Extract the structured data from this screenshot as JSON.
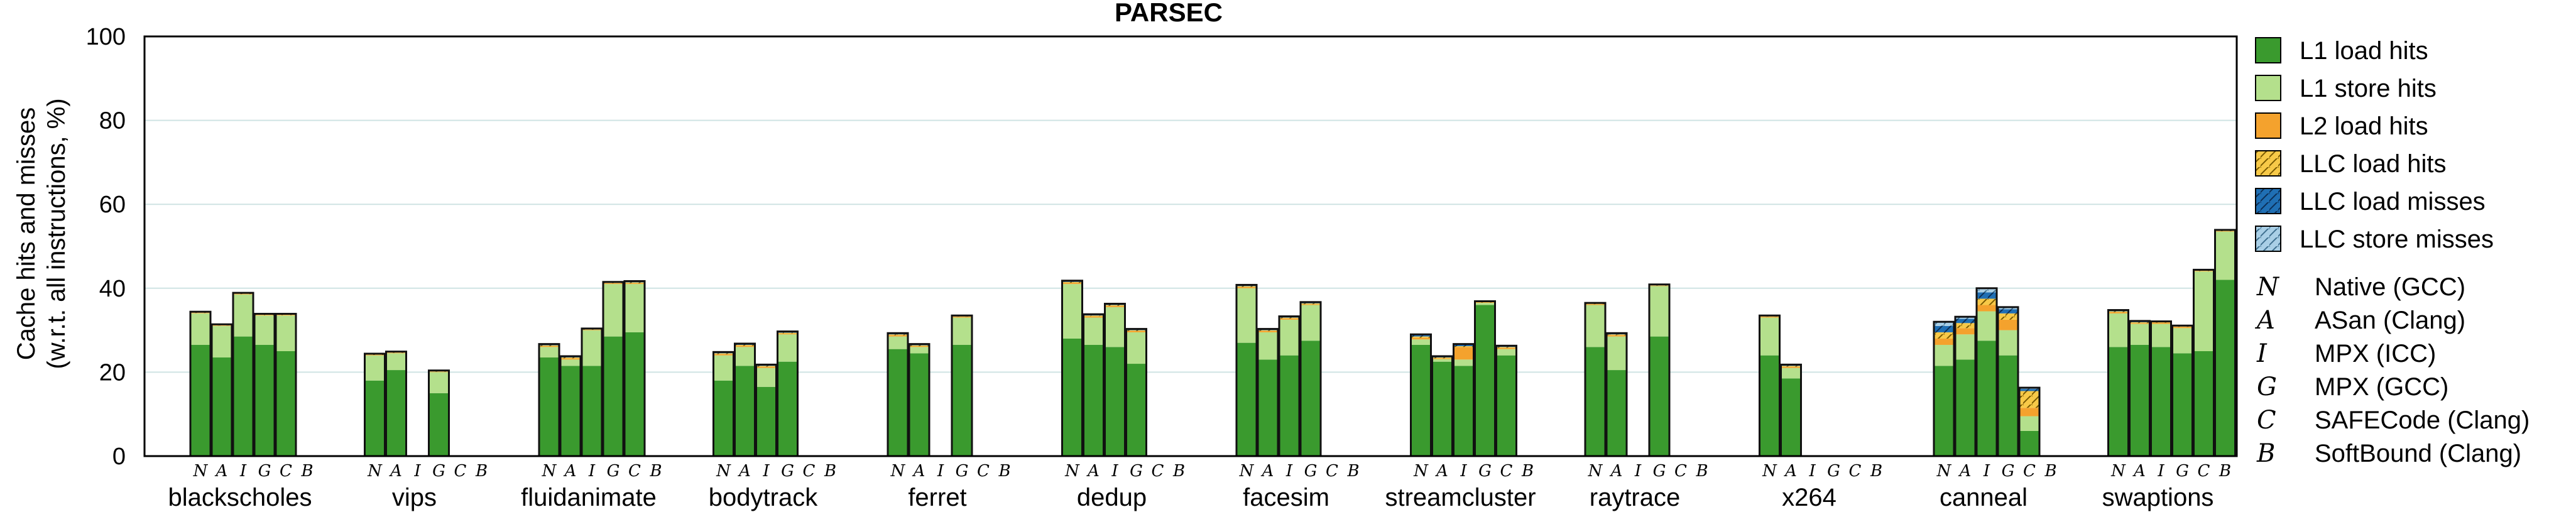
{
  "chart_data": {
    "type": "bar",
    "stacked": true,
    "title": "PARSEC",
    "ylabel_line1": "Cache hits and misses",
    "ylabel_line2": "(w.r.t. all instructions, %)",
    "ylim": [
      0,
      100
    ],
    "yticks": [
      "0",
      "20",
      "40",
      "60",
      "80",
      "100"
    ],
    "grid": true,
    "legend_position": "right",
    "configs": [
      "N",
      "A",
      "I",
      "G",
      "C",
      "B"
    ],
    "config_legend": [
      {
        "key": "N",
        "label": "Native (GCC)"
      },
      {
        "key": "A",
        "label": "ASan (Clang)"
      },
      {
        "key": "I",
        "label": "MPX (ICC)"
      },
      {
        "key": "G",
        "label": "MPX (GCC)"
      },
      {
        "key": "C",
        "label": "SAFECode (Clang)"
      },
      {
        "key": "B",
        "label": "SoftBound (Clang)"
      }
    ],
    "series": [
      {
        "name": "L1 load hits",
        "color": "#3a9a2e",
        "pattern": "none"
      },
      {
        "name": "L1 store hits",
        "color": "#b4e08c",
        "pattern": "none"
      },
      {
        "name": "L2 load hits",
        "color": "#f4a22d",
        "pattern": "none"
      },
      {
        "name": "LLC load hits",
        "color": "#f7c948",
        "pattern": "hatch"
      },
      {
        "name": "LLC load misses",
        "color": "#1f6fb4",
        "pattern": "hatch"
      },
      {
        "name": "LLC store misses",
        "color": "#a9cfe6",
        "pattern": "hatch"
      }
    ],
    "categories": [
      "blackscholes",
      "vips",
      "fluidanimate",
      "bodytrack",
      "ferret",
      "dedup",
      "facesim",
      "streamcluster",
      "raytrace",
      "x264",
      "canneal",
      "swaptions"
    ],
    "data": [
      [
        [
          26.5,
          7.5,
          0.1,
          0.1,
          0.1,
          0.1
        ],
        [
          23.5,
          7.5,
          0.1,
          0.1,
          0.1,
          0.1
        ],
        [
          28.5,
          10,
          0.1,
          0.1,
          0.1,
          0.1
        ],
        [
          26.5,
          7,
          0.1,
          0.1,
          0.1,
          0.1
        ],
        [
          25,
          8.5,
          0.1,
          0.1,
          0.1,
          0.1
        ],
        null
      ],
      [
        [
          18,
          6,
          0.1,
          0.1,
          0.1,
          0.1
        ],
        [
          20.5,
          4,
          0.1,
          0.1,
          0.1,
          0.1
        ],
        null,
        [
          15,
          5,
          0.1,
          0.1,
          0.1,
          0.1
        ],
        null,
        null
      ],
      [
        [
          23.5,
          2.5,
          0.2,
          0.2,
          0.2,
          0.1
        ],
        [
          21.5,
          1.5,
          0.3,
          0.2,
          0.2,
          0.1
        ],
        [
          21.5,
          8.5,
          0.1,
          0.1,
          0.1,
          0.1
        ],
        [
          28.5,
          12.5,
          0.2,
          0.1,
          0.1,
          0.1
        ],
        [
          29.5,
          11.5,
          0.2,
          0.2,
          0.2,
          0.1
        ],
        null
      ],
      [
        [
          18,
          6,
          0.3,
          0.2,
          0.2,
          0.1
        ],
        [
          21.5,
          4.5,
          0.3,
          0.2,
          0.2,
          0.1
        ],
        [
          16.5,
          4.5,
          0.3,
          0.2,
          0.2,
          0.1
        ],
        [
          22.5,
          6.5,
          0.2,
          0.2,
          0.2,
          0.1
        ],
        null,
        null
      ],
      [
        [
          25.5,
          3,
          0.3,
          0.2,
          0.2,
          0.1
        ],
        [
          24.5,
          1.5,
          0.2,
          0.2,
          0.2,
          0.1
        ],
        null,
        [
          26.5,
          6.5,
          0.2,
          0.1,
          0.1,
          0.1
        ],
        null,
        null
      ],
      [
        [
          28,
          13,
          0.3,
          0.2,
          0.2,
          0.1
        ],
        [
          26.5,
          6.5,
          0.3,
          0.2,
          0.2,
          0.1
        ],
        [
          26,
          9.5,
          0.3,
          0.2,
          0.2,
          0.1
        ],
        [
          22,
          7.5,
          0.3,
          0.2,
          0.2,
          0.1
        ],
        null,
        null
      ],
      [
        [
          27,
          13,
          0.3,
          0.2,
          0.2,
          0.1
        ],
        [
          23,
          6.5,
          0.3,
          0.2,
          0.2,
          0.1
        ],
        [
          24,
          8.5,
          0.3,
          0.2,
          0.2,
          0.1
        ],
        [
          27.5,
          8.5,
          0.2,
          0.2,
          0.2,
          0.1
        ],
        null,
        null
      ],
      [
        [
          26.5,
          1.3,
          0.4,
          0.3,
          0.3,
          0.2
        ],
        [
          22.5,
          0.6,
          0.2,
          0.2,
          0.2,
          0.1
        ],
        [
          21.5,
          1.5,
          3,
          0.2,
          0.3,
          0.2
        ],
        [
          36,
          0.5,
          0.1,
          0.1,
          0.1,
          0.1
        ],
        [
          24,
          1.5,
          0.3,
          0.2,
          0.2,
          0.1
        ],
        null
      ],
      [
        [
          26,
          10,
          0.2,
          0.1,
          0.1,
          0.1
        ],
        [
          20.5,
          8,
          0.3,
          0.2,
          0.2,
          0.1
        ],
        null,
        [
          28.5,
          12,
          0.1,
          0.1,
          0.1,
          0.1
        ],
        null,
        null
      ],
      [
        [
          24,
          9,
          0.2,
          0.1,
          0.1,
          0.1
        ],
        [
          18.5,
          2.5,
          0.3,
          0.2,
          0.2,
          0.1
        ],
        null,
        null,
        null,
        null
      ],
      [
        [
          21.5,
          5,
          1.5,
          1.5,
          1.5,
          1
        ],
        [
          23,
          6,
          1.5,
          1.2,
          1,
          0.5
        ],
        [
          27.5,
          7,
          1.5,
          1.5,
          1.5,
          1
        ],
        [
          24,
          6,
          2.5,
          1.5,
          1,
          0.5
        ],
        [
          6,
          3.5,
          2,
          4,
          0.5,
          0.3
        ],
        null
      ],
      [
        [
          26,
          8,
          0.3,
          0.2,
          0.2,
          0.1
        ],
        [
          26.5,
          5,
          0.2,
          0.2,
          0.2,
          0.1
        ],
        [
          26,
          5.5,
          0.3,
          0.1,
          0.1,
          0.1
        ],
        [
          24.5,
          6,
          0.3,
          0.1,
          0.1,
          0.1
        ],
        [
          25,
          19,
          0.1,
          0.1,
          0.1,
          0.1
        ],
        [
          42,
          11.5,
          0.1,
          0.1,
          0.1,
          0.1
        ]
      ]
    ]
  }
}
